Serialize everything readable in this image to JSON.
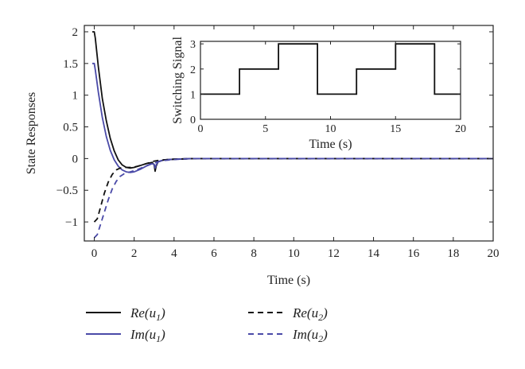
{
  "colors": {
    "u1_real": "#111111",
    "u1_imag": "#4a4aa8",
    "u2_real": "#111111",
    "u2_imag": "#4a4aa8",
    "axis": "#222222"
  },
  "chart_data": [
    {
      "type": "line",
      "title": "",
      "xlabel": "Time (s)",
      "ylabel": "State Responses",
      "xlim": [
        -0.5,
        20
      ],
      "ylim": [
        -1.3,
        2.1
      ],
      "xticks": [
        0,
        2,
        4,
        6,
        8,
        10,
        12,
        14,
        16,
        18,
        20
      ],
      "xtick_labels": [
        "0",
        "2",
        "4",
        "6",
        "8",
        "10",
        "12",
        "14",
        "16",
        "18",
        "20"
      ],
      "yticks": [
        -1,
        -0.5,
        0,
        0.5,
        1,
        1.5,
        2
      ],
      "ytick_labels": [
        "−1",
        "−0.5",
        "0",
        "0.5",
        "1",
        "1.5",
        "2"
      ],
      "grid": false,
      "legend_position": "below",
      "series": [
        {
          "name": "Re(u1)",
          "label_base": "Re(u",
          "label_sub": "1",
          "label_end": ")",
          "style": "solid",
          "color": "#111111",
          "x": [
            -0.1,
            0,
            0.05,
            0.2,
            0.4,
            0.6,
            0.8,
            1.0,
            1.2,
            1.4,
            1.6,
            1.8,
            2.0,
            2.3,
            2.6,
            2.9,
            3.0,
            3.05,
            3.1,
            3.2,
            3.5,
            4.0,
            4.5,
            5.0,
            6.0,
            8.0,
            12.0,
            20.0
          ],
          "y": [
            2.0,
            2.0,
            1.9,
            1.45,
            0.95,
            0.6,
            0.32,
            0.12,
            -0.02,
            -0.1,
            -0.14,
            -0.15,
            -0.14,
            -0.11,
            -0.08,
            -0.06,
            -0.1,
            -0.2,
            -0.12,
            -0.05,
            -0.02,
            -0.01,
            -0.005,
            0,
            0,
            0,
            0,
            0
          ]
        },
        {
          "name": "Im(u1)",
          "label_base": "Im(u",
          "label_sub": "1",
          "label_end": ")",
          "style": "solid",
          "color": "#4a4aa8",
          "x": [
            -0.1,
            0,
            0.05,
            0.2,
            0.4,
            0.6,
            0.8,
            1.0,
            1.2,
            1.4,
            1.6,
            1.8,
            2.0,
            2.3,
            2.6,
            2.9,
            3.0,
            3.05,
            3.1,
            3.2,
            3.5,
            4.0,
            4.5,
            5.0,
            6.0,
            8.0,
            12.0,
            20.0
          ],
          "y": [
            1.5,
            1.5,
            1.4,
            1.05,
            0.65,
            0.35,
            0.13,
            -0.02,
            -0.12,
            -0.18,
            -0.21,
            -0.22,
            -0.21,
            -0.17,
            -0.12,
            -0.08,
            -0.09,
            -0.15,
            -0.1,
            -0.05,
            -0.02,
            -0.01,
            -0.005,
            0,
            0,
            0,
            0,
            0
          ]
        },
        {
          "name": "Re(u2)",
          "label_base": "Re(u",
          "label_sub": "2",
          "label_end": ")",
          "style": "dashed",
          "color": "#111111",
          "x": [
            0,
            0.15,
            0.3,
            0.5,
            0.7,
            0.9,
            1.1,
            1.3,
            1.5,
            1.7,
            1.9,
            2.2,
            2.5,
            2.8,
            3.0,
            3.2,
            3.5,
            4.0,
            4.5,
            5.0,
            6.0,
            8.0,
            12.0,
            20.0
          ],
          "y": [
            -1.0,
            -0.95,
            -0.78,
            -0.55,
            -0.37,
            -0.25,
            -0.18,
            -0.15,
            -0.14,
            -0.14,
            -0.14,
            -0.12,
            -0.09,
            -0.06,
            -0.04,
            -0.03,
            -0.02,
            -0.01,
            -0.005,
            0,
            0,
            0,
            0,
            0
          ]
        },
        {
          "name": "Im(u2)",
          "label_base": "Im(u",
          "label_sub": "2",
          "label_end": ")",
          "style": "dashed",
          "color": "#4a4aa8",
          "x": [
            0,
            0.15,
            0.3,
            0.5,
            0.7,
            0.9,
            1.1,
            1.3,
            1.5,
            1.7,
            1.9,
            2.2,
            2.5,
            2.8,
            3.0,
            3.2,
            3.5,
            4.0,
            4.5,
            5.0,
            6.0,
            8.0,
            12.0,
            20.0
          ],
          "y": [
            -1.25,
            -1.2,
            -1.05,
            -0.85,
            -0.65,
            -0.48,
            -0.36,
            -0.28,
            -0.24,
            -0.22,
            -0.2,
            -0.17,
            -0.13,
            -0.09,
            -0.07,
            -0.05,
            -0.03,
            -0.015,
            -0.005,
            0,
            0,
            0,
            0,
            0
          ]
        }
      ]
    },
    {
      "type": "line",
      "title": "",
      "xlabel": "Time (s)",
      "ylabel": "Switching Signal",
      "xlim": [
        0,
        20
      ],
      "ylim": [
        0,
        3.1
      ],
      "xticks": [
        0,
        5,
        10,
        15,
        20
      ],
      "xtick_labels": [
        "0",
        "5",
        "10",
        "15",
        "20"
      ],
      "yticks": [
        0,
        1,
        2,
        3
      ],
      "ytick_labels": [
        "0",
        "1",
        "2",
        "3"
      ],
      "grid": false,
      "series": [
        {
          "name": "",
          "style": "step",
          "color": "#111111",
          "x": [
            0,
            3,
            3,
            6,
            6,
            9,
            9,
            12,
            12,
            15,
            15,
            18,
            18,
            20
          ],
          "y": [
            1,
            1,
            2,
            2,
            3,
            3,
            1,
            1,
            2,
            2,
            3,
            3,
            1,
            1
          ]
        }
      ]
    }
  ]
}
